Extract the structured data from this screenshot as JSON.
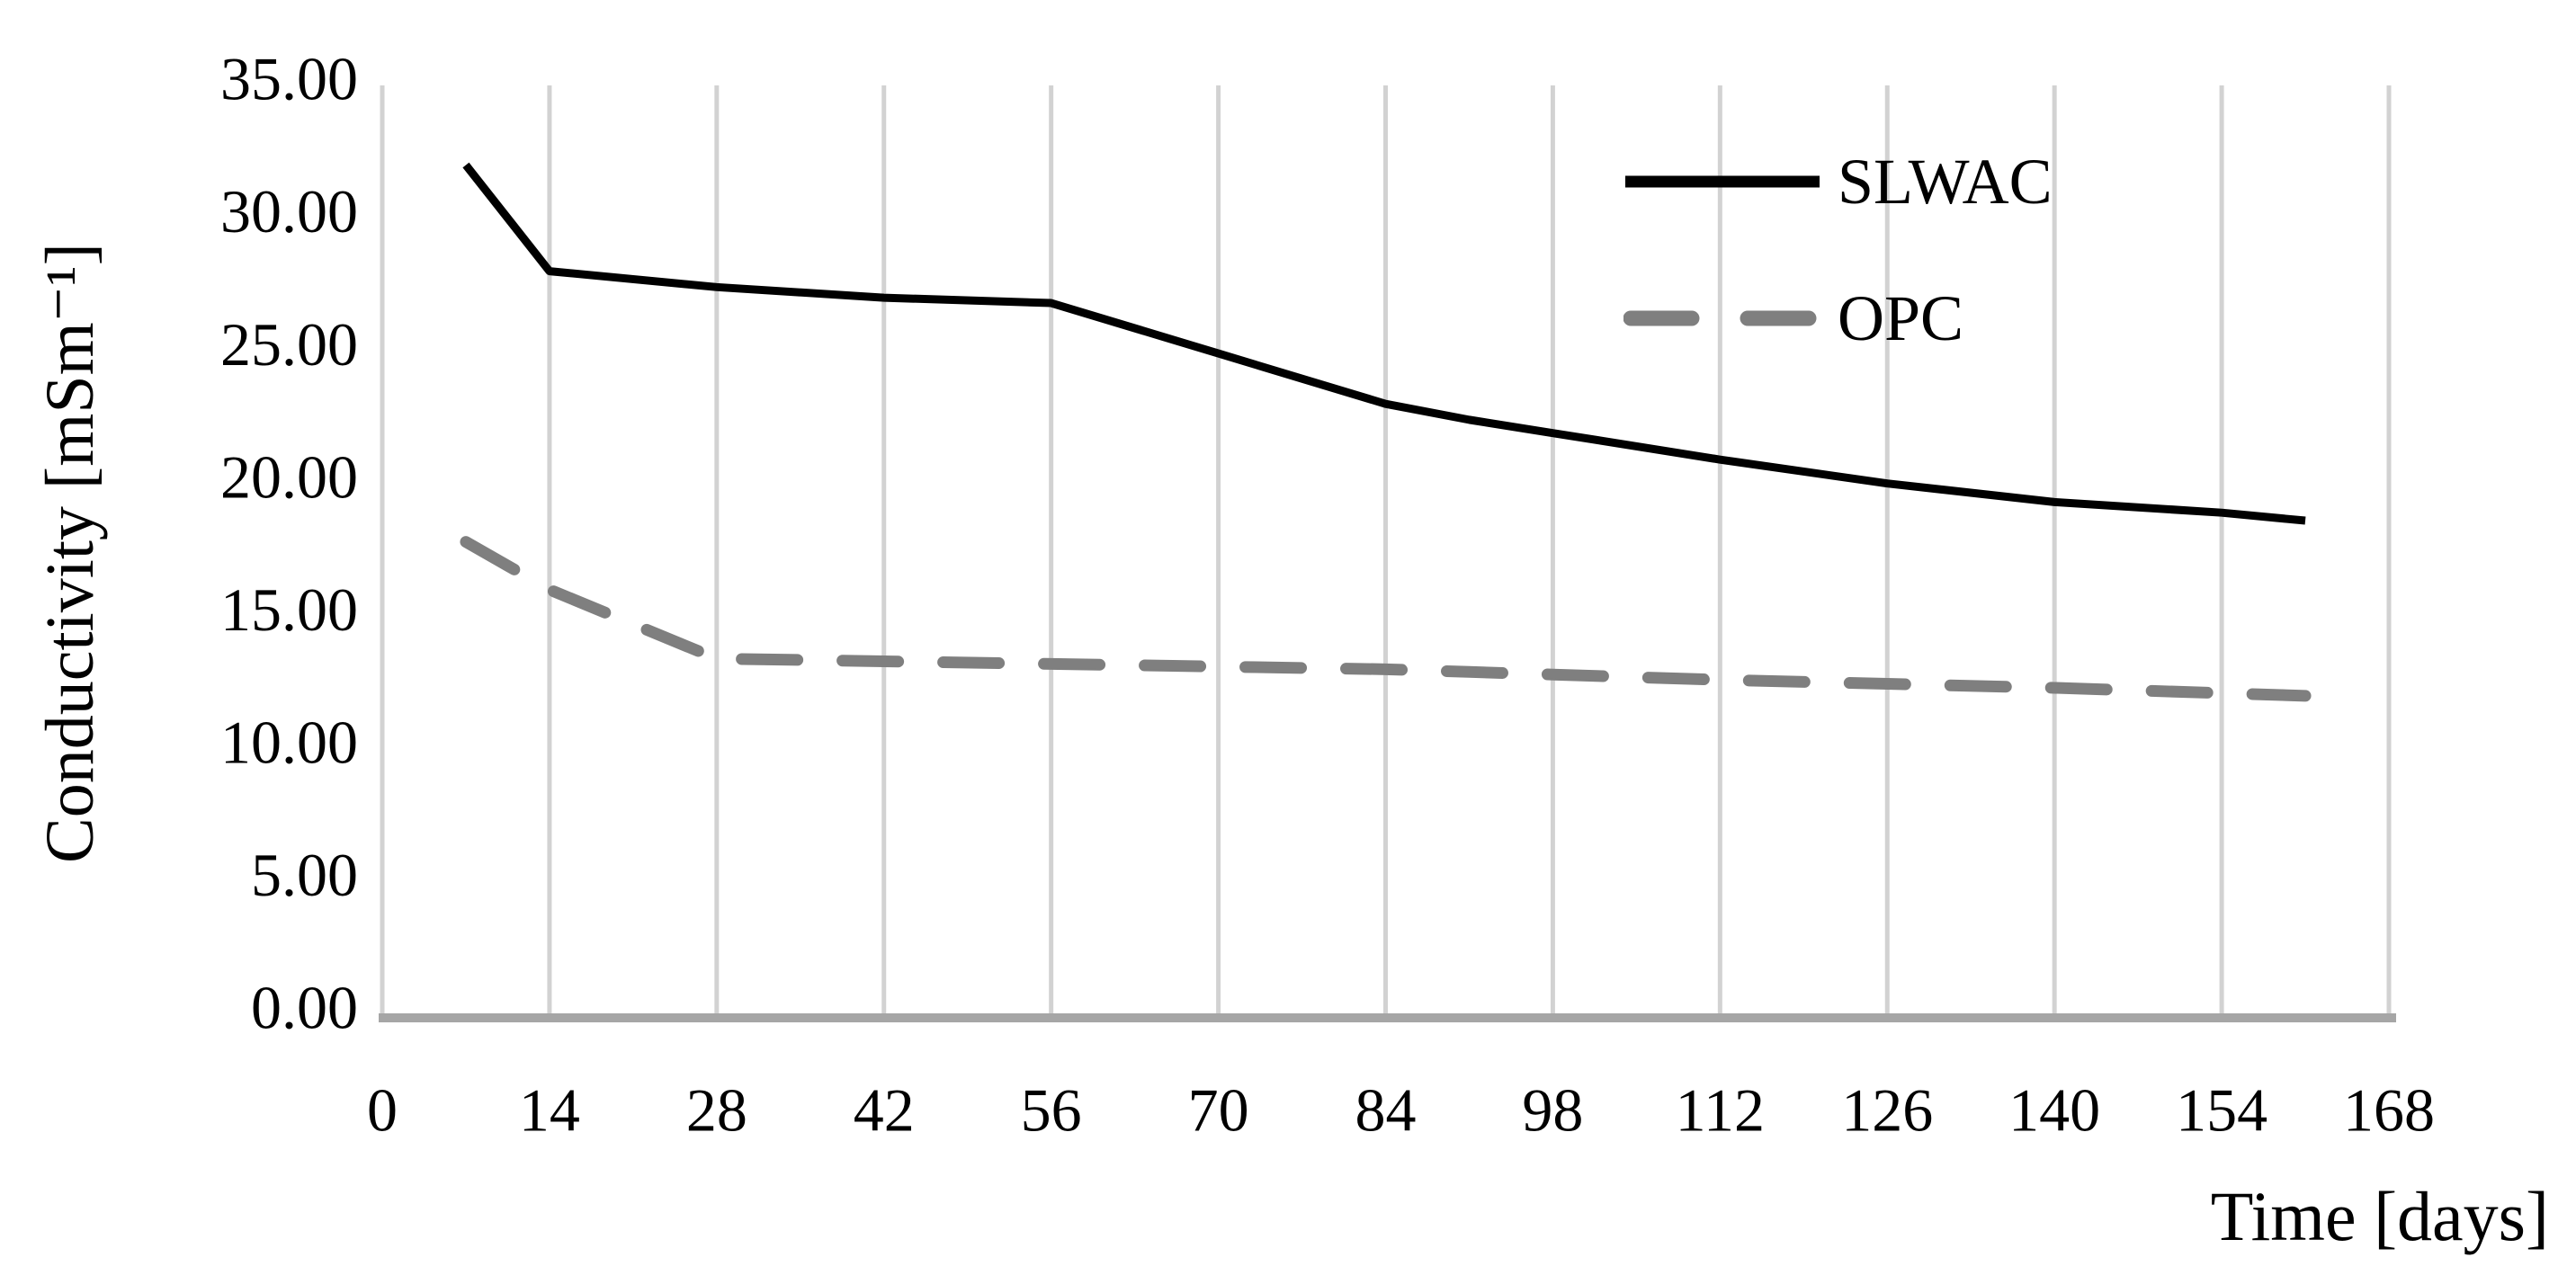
{
  "page": {
    "background": "#ffffff"
  },
  "chart_data": {
    "type": "line",
    "title": "",
    "xlabel": "Time [days]",
    "ylabel": "Conductivity [mSm⁻¹]",
    "xlim": [
      0,
      168
    ],
    "ylim": [
      0,
      35
    ],
    "xticks": [
      0,
      14,
      28,
      42,
      56,
      70,
      84,
      98,
      112,
      126,
      140,
      154,
      168
    ],
    "yticks": [
      0,
      5,
      10,
      15,
      20,
      25,
      30,
      35
    ],
    "ytick_decimals": 2,
    "grid": "vertical-only",
    "legend_position": "inside-top-right",
    "colors": {
      "grid": "#d2d2d2",
      "axis": "#a6a6a6",
      "text": "#000000"
    },
    "x": [
      7,
      14,
      28,
      42,
      56,
      70,
      84,
      91,
      98,
      112,
      126,
      140,
      154,
      161
    ],
    "series": [
      {
        "name": "SLWAC",
        "style": "solid",
        "color": "#000000",
        "values": [
          32.0,
          28.0,
          27.4,
          27.0,
          26.8,
          24.9,
          23.0,
          22.4,
          21.9,
          20.9,
          20.0,
          19.3,
          18.9,
          18.6
        ]
      },
      {
        "name": "OPC",
        "style": "dashed",
        "color": "#7f7f7f",
        "values": [
          17.8,
          16.0,
          13.4,
          13.3,
          13.2,
          13.1,
          13.0,
          12.9,
          12.8,
          12.6,
          12.45,
          12.3,
          12.1,
          12.0
        ]
      }
    ]
  }
}
